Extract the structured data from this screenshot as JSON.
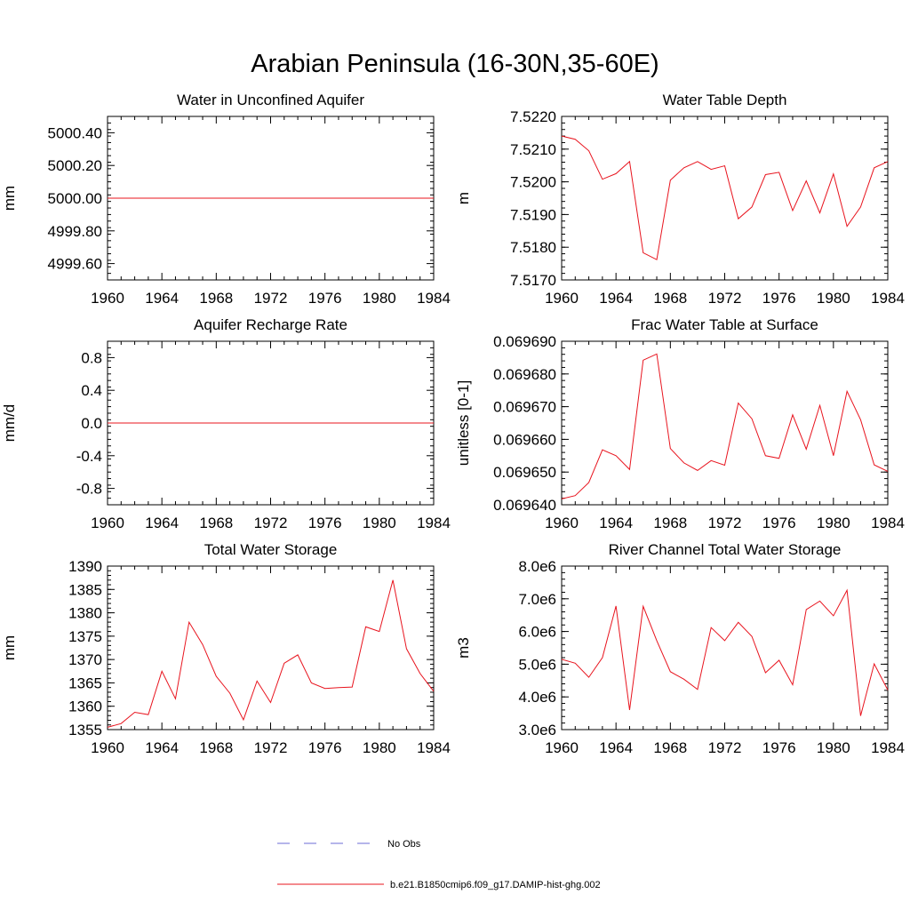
{
  "page": {
    "title": "Arabian Peninsula (16-30N,35-60E)"
  },
  "legend": {
    "entries": [
      {
        "label": "No Obs",
        "color": "#6b6bd6",
        "style": "dashed"
      },
      {
        "label": "b.e21.B1850cmip6.f09_g17.DAMIP-hist-ghg.002",
        "color": "#e8141e",
        "style": "solid"
      }
    ]
  },
  "colors": {
    "series": "#e8141e",
    "axis": "#000000"
  },
  "chart_data": [
    {
      "type": "line",
      "title": "Water in Unconfined Aquifer",
      "ylabel": "mm",
      "xlabel": "",
      "xlim": [
        1960,
        1984
      ],
      "ylim": [
        4999.5,
        5000.5
      ],
      "xticks": [
        1960,
        1964,
        1968,
        1972,
        1976,
        1980,
        1984
      ],
      "xtick_labels": [
        "1960",
        "1964",
        "1968",
        "1972",
        "1976",
        "1980",
        "1984"
      ],
      "yticks": [
        4999.6,
        4999.8,
        5000.0,
        5000.2,
        5000.4
      ],
      "ytick_labels": [
        "4999.60",
        "4999.80",
        "5000.00",
        "5000.20",
        "5000.40"
      ],
      "series": [
        {
          "x": [
            1960,
            1961,
            1962,
            1963,
            1964,
            1965,
            1966,
            1967,
            1968,
            1969,
            1970,
            1971,
            1972,
            1973,
            1974,
            1975,
            1976,
            1977,
            1978,
            1979,
            1980,
            1981,
            1982,
            1983,
            1984
          ],
          "values": [
            5000,
            5000,
            5000,
            5000,
            5000,
            5000,
            5000,
            5000,
            5000,
            5000,
            5000,
            5000,
            5000,
            5000,
            5000,
            5000,
            5000,
            5000,
            5000,
            5000,
            5000,
            5000,
            5000,
            5000,
            5000
          ]
        }
      ]
    },
    {
      "type": "line",
      "title": "Water Table Depth",
      "ylabel": "m",
      "xlabel": "",
      "xlim": [
        1960,
        1984
      ],
      "ylim": [
        7.517,
        7.522
      ],
      "xticks": [
        1960,
        1964,
        1968,
        1972,
        1976,
        1980,
        1984
      ],
      "xtick_labels": [
        "1960",
        "1964",
        "1968",
        "1972",
        "1976",
        "1980",
        "1984"
      ],
      "yticks": [
        7.517,
        7.518,
        7.519,
        7.52,
        7.521,
        7.522
      ],
      "ytick_labels": [
        "7.5170",
        "7.5180",
        "7.5190",
        "7.5200",
        "7.5210",
        "7.5220"
      ],
      "series": [
        {
          "x": [
            1960,
            1961,
            1962,
            1963,
            1964,
            1965,
            1966,
            1967,
            1968,
            1969,
            1970,
            1971,
            1972,
            1973,
            1974,
            1975,
            1976,
            1977,
            1978,
            1979,
            1980,
            1981,
            1982,
            1983,
            1984
          ],
          "values": [
            7.5214,
            7.5213,
            7.52095,
            7.52008,
            7.52025,
            7.52062,
            7.51783,
            7.51762,
            7.52005,
            7.52043,
            7.52062,
            7.52038,
            7.52049,
            7.51887,
            7.51923,
            7.52022,
            7.52029,
            7.51912,
            7.52003,
            7.51905,
            7.52024,
            7.51864,
            7.51923,
            7.52043,
            7.52062
          ]
        }
      ]
    },
    {
      "type": "line",
      "title": "Aquifer Recharge Rate",
      "ylabel": "mm/d",
      "xlabel": "",
      "xlim": [
        1960,
        1984
      ],
      "ylim": [
        -1.0,
        1.0
      ],
      "xticks": [
        1960,
        1964,
        1968,
        1972,
        1976,
        1980,
        1984
      ],
      "xtick_labels": [
        "1960",
        "1964",
        "1968",
        "1972",
        "1976",
        "1980",
        "1984"
      ],
      "yticks": [
        -0.8,
        -0.4,
        0.0,
        0.4,
        0.8
      ],
      "ytick_labels": [
        "-0.8",
        "-0.4",
        "0.0",
        "0.4",
        "0.8"
      ],
      "series": [
        {
          "x": [
            1960,
            1961,
            1962,
            1963,
            1964,
            1965,
            1966,
            1967,
            1968,
            1969,
            1970,
            1971,
            1972,
            1973,
            1974,
            1975,
            1976,
            1977,
            1978,
            1979,
            1980,
            1981,
            1982,
            1983,
            1984
          ],
          "values": [
            0,
            0,
            0,
            0,
            0,
            0,
            0,
            0,
            0,
            0,
            0,
            0,
            0,
            0,
            0,
            0,
            0,
            0,
            0,
            0,
            0,
            0,
            0,
            0,
            0
          ]
        }
      ]
    },
    {
      "type": "line",
      "title": "Frac Water Table at Surface",
      "ylabel": "unitless [0-1]",
      "xlabel": "",
      "xlim": [
        1960,
        1984
      ],
      "ylim": [
        0.06964,
        0.06969
      ],
      "xticks": [
        1960,
        1964,
        1968,
        1972,
        1976,
        1980,
        1984
      ],
      "xtick_labels": [
        "1960",
        "1964",
        "1968",
        "1972",
        "1976",
        "1980",
        "1984"
      ],
      "yticks": [
        0.06964,
        0.06965,
        0.06966,
        0.06967,
        0.06968,
        0.06969
      ],
      "ytick_labels": [
        "0.069640",
        "0.069650",
        "0.069660",
        "0.069670",
        "0.069680",
        "0.069690"
      ],
      "series": [
        {
          "x": [
            1960,
            1961,
            1962,
            1963,
            1964,
            1965,
            1966,
            1967,
            1968,
            1969,
            1970,
            1971,
            1972,
            1973,
            1974,
            1975,
            1976,
            1977,
            1978,
            1979,
            1980,
            1981,
            1982,
            1983,
            1984
          ],
          "values": [
            0.0696418,
            0.0696428,
            0.0696468,
            0.0696568,
            0.069655,
            0.0696508,
            0.0696842,
            0.0696861,
            0.0696572,
            0.0696528,
            0.0696505,
            0.0696535,
            0.0696521,
            0.0696711,
            0.0696663,
            0.069655,
            0.0696542,
            0.0696675,
            0.069657,
            0.0696704,
            0.069655,
            0.0696747,
            0.069666,
            0.0696522,
            0.0696502
          ]
        }
      ]
    },
    {
      "type": "line",
      "title": "Total Water Storage",
      "ylabel": "mm",
      "xlabel": "",
      "xlim": [
        1960,
        1984
      ],
      "ylim": [
        1355,
        1390
      ],
      "xticks": [
        1960,
        1964,
        1968,
        1972,
        1976,
        1980,
        1984
      ],
      "xtick_labels": [
        "1960",
        "1964",
        "1968",
        "1972",
        "1976",
        "1980",
        "1984"
      ],
      "yticks": [
        1355,
        1360,
        1365,
        1370,
        1375,
        1380,
        1385,
        1390
      ],
      "ytick_labels": [
        "1355",
        "1360",
        "1365",
        "1370",
        "1375",
        "1380",
        "1385",
        "1390"
      ],
      "series": [
        {
          "x": [
            1960,
            1961,
            1962,
            1963,
            1964,
            1965,
            1966,
            1967,
            1968,
            1969,
            1970,
            1971,
            1972,
            1973,
            1974,
            1975,
            1976,
            1977,
            1978,
            1979,
            1980,
            1981,
            1982,
            1983,
            1984
          ],
          "values": [
            1355.5,
            1356.3,
            1358.7,
            1358.2,
            1367.5,
            1361.6,
            1378.0,
            1373.2,
            1366.4,
            1362.8,
            1357.1,
            1365.4,
            1360.8,
            1369.2,
            1371.0,
            1365.0,
            1363.8,
            1364.0,
            1364.1,
            1377.0,
            1376.0,
            1387.0,
            1372.3,
            1367.0,
            1363.2
          ]
        }
      ]
    },
    {
      "type": "line",
      "title": "River Channel Total Water Storage",
      "ylabel": "m3",
      "xlabel": "",
      "xlim": [
        1960,
        1984
      ],
      "ylim": [
        3000000,
        8000000
      ],
      "xticks": [
        1960,
        1964,
        1968,
        1972,
        1976,
        1980,
        1984
      ],
      "xtick_labels": [
        "1960",
        "1964",
        "1968",
        "1972",
        "1976",
        "1980",
        "1984"
      ],
      "yticks": [
        3000000,
        4000000,
        5000000,
        6000000,
        7000000,
        8000000
      ],
      "ytick_labels": [
        "3.0e6",
        "4.0e6",
        "5.0e6",
        "6.0e6",
        "7.0e6",
        "8.0e6"
      ],
      "series": [
        {
          "x": [
            1960,
            1961,
            1962,
            1963,
            1964,
            1965,
            1966,
            1967,
            1968,
            1969,
            1970,
            1971,
            1972,
            1973,
            1974,
            1975,
            1976,
            1977,
            1978,
            1979,
            1980,
            1981,
            1982,
            1983,
            1984
          ],
          "values": [
            5150000,
            5030000,
            4600000,
            5200000,
            6780000,
            3600000,
            6770000,
            5720000,
            4770000,
            4540000,
            4230000,
            6120000,
            5720000,
            6280000,
            5850000,
            4740000,
            5120000,
            4370000,
            6670000,
            6930000,
            6480000,
            7260000,
            3420000,
            5010000,
            4210000
          ]
        }
      ]
    }
  ]
}
